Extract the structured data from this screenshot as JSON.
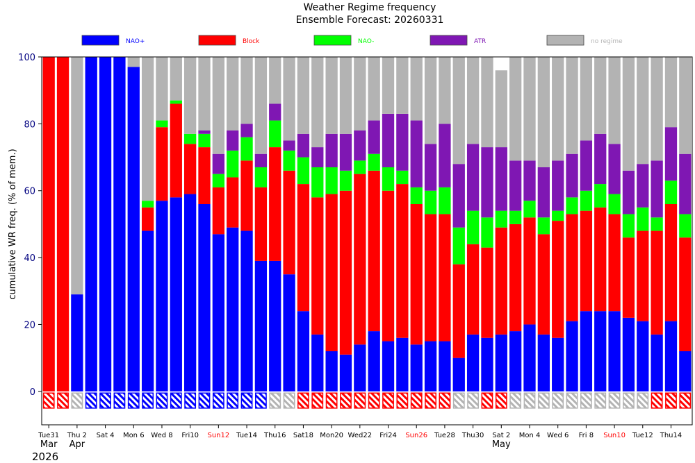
{
  "chart_data": {
    "type": "bar",
    "stacked": true,
    "title": "Weather Regime frequency",
    "subtitle": "Ensemble Forecast: 20260331",
    "ylabel": "cumulative WR freq. (% of mem.)",
    "xlabel": "",
    "ylim": [
      -10,
      100
    ],
    "yticks": [
      0,
      20,
      40,
      60,
      80,
      100
    ],
    "year_label": "2026",
    "month_labels": [
      {
        "index": 0,
        "text": "Mar"
      },
      {
        "index": 2,
        "text": "Apr"
      },
      {
        "index": 32,
        "text": "May"
      }
    ],
    "tick_labels": [
      {
        "index": 0,
        "text": "Tue31",
        "weekend": false
      },
      {
        "index": 2,
        "text": "Thu 2",
        "weekend": false
      },
      {
        "index": 4,
        "text": "Sat 4",
        "weekend": false
      },
      {
        "index": 6,
        "text": "Mon 6",
        "weekend": false
      },
      {
        "index": 8,
        "text": "Wed 8",
        "weekend": false
      },
      {
        "index": 10,
        "text": "Fri10",
        "weekend": false
      },
      {
        "index": 12,
        "text": "Sun12",
        "weekend": true
      },
      {
        "index": 14,
        "text": "Tue14",
        "weekend": false
      },
      {
        "index": 16,
        "text": "Thu16",
        "weekend": false
      },
      {
        "index": 18,
        "text": "Sat18",
        "weekend": false
      },
      {
        "index": 20,
        "text": "Mon20",
        "weekend": false
      },
      {
        "index": 22,
        "text": "Wed22",
        "weekend": false
      },
      {
        "index": 24,
        "text": "Fri24",
        "weekend": false
      },
      {
        "index": 26,
        "text": "Sun26",
        "weekend": true
      },
      {
        "index": 28,
        "text": "Tue28",
        "weekend": false
      },
      {
        "index": 30,
        "text": "Thu30",
        "weekend": false
      },
      {
        "index": 32,
        "text": "Sat 2",
        "weekend": false
      },
      {
        "index": 34,
        "text": "Mon 4",
        "weekend": false
      },
      {
        "index": 36,
        "text": "Wed 6",
        "weekend": false
      },
      {
        "index": 38,
        "text": "Fri 8",
        "weekend": false
      },
      {
        "index": 40,
        "text": "Sun10",
        "weekend": true
      },
      {
        "index": 42,
        "text": "Tue12",
        "weekend": false
      },
      {
        "index": 44,
        "text": "Thu14",
        "weekend": false
      }
    ],
    "colors": {
      "NAO+": "#0000ff",
      "Block": "#ff0000",
      "NAO-": "#00ff00",
      "ATR": "#7f17b3",
      "no regime": "#b3b3b3",
      "weekend_label": "#ff0000",
      "axis_text": "#000080"
    },
    "legend_text_colors": {
      "NAO+": "#0000ff",
      "Block": "#ff0000",
      "NAO-": "#00ff00",
      "ATR": "#7f17b3",
      "no regime": "#b3b3b3"
    },
    "series": [
      {
        "name": "NAO+",
        "values": [
          0,
          0,
          29,
          100,
          100,
          100,
          97,
          48,
          57,
          58,
          59,
          56,
          47,
          49,
          48,
          39,
          39,
          35,
          24,
          17,
          12,
          11,
          14,
          18,
          15,
          16,
          14,
          15,
          15,
          10,
          17,
          16,
          17,
          18,
          20,
          17,
          16,
          21,
          24,
          24,
          24,
          22,
          21,
          17,
          21,
          12
        ]
      },
      {
        "name": "Block",
        "values": [
          100,
          100,
          0,
          0,
          0,
          0,
          0,
          7,
          22,
          28,
          15,
          17,
          14,
          15,
          21,
          22,
          34,
          31,
          38,
          41,
          47,
          49,
          51,
          48,
          45,
          46,
          42,
          38,
          38,
          28,
          27,
          27,
          32,
          32,
          32,
          30,
          35,
          32,
          30,
          31,
          29,
          24,
          27,
          31,
          35,
          34
        ]
      },
      {
        "name": "NAO-",
        "values": [
          0,
          0,
          0,
          0,
          0,
          0,
          0,
          2,
          2,
          1,
          3,
          4,
          4,
          8,
          7,
          6,
          8,
          6,
          8,
          9,
          8,
          6,
          4,
          5,
          7,
          4,
          5,
          7,
          8,
          11,
          10,
          9,
          5,
          4,
          5,
          5,
          3,
          5,
          6,
          7,
          6,
          7,
          7,
          4,
          7,
          7
        ]
      },
      {
        "name": "ATR",
        "values": [
          0,
          0,
          0,
          0,
          0,
          0,
          0,
          0,
          0,
          0,
          0,
          1,
          6,
          6,
          4,
          4,
          5,
          3,
          7,
          6,
          10,
          11,
          9,
          10,
          16,
          17,
          20,
          14,
          19,
          19,
          20,
          21,
          19,
          15,
          12,
          15,
          15,
          13,
          15,
          15,
          15,
          13,
          13,
          17,
          16,
          18
        ]
      },
      {
        "name": "no regime",
        "values": [
          0,
          0,
          71,
          0,
          0,
          0,
          3,
          43,
          19,
          13,
          23,
          22,
          29,
          22,
          20,
          29,
          14,
          25,
          23,
          27,
          23,
          23,
          22,
          19,
          17,
          17,
          19,
          26,
          20,
          32,
          26,
          27,
          23,
          31,
          31,
          33,
          31,
          29,
          25,
          23,
          26,
          34,
          32,
          31,
          21,
          29
        ]
      }
    ],
    "observed_regime": [
      "Block",
      "Block",
      "no regime",
      "NAO+",
      "NAO+",
      "NAO+",
      "NAO+",
      "NAO+",
      "NAO+",
      "NAO+",
      "NAO+",
      "NAO+",
      "NAO+",
      "NAO+",
      "NAO+",
      "NAO+",
      "no regime",
      "no regime",
      "Block",
      "Block",
      "Block",
      "Block",
      "Block",
      "Block",
      "Block",
      "Block",
      "Block",
      "Block",
      "Block",
      "no regime",
      "no regime",
      "Block",
      "Block",
      "no regime",
      "no regime",
      "no regime",
      "no regime",
      "no regime",
      "no regime",
      "no regime",
      "no regime",
      "no regime",
      "no regime",
      "Block",
      "Block",
      "Block"
    ]
  }
}
